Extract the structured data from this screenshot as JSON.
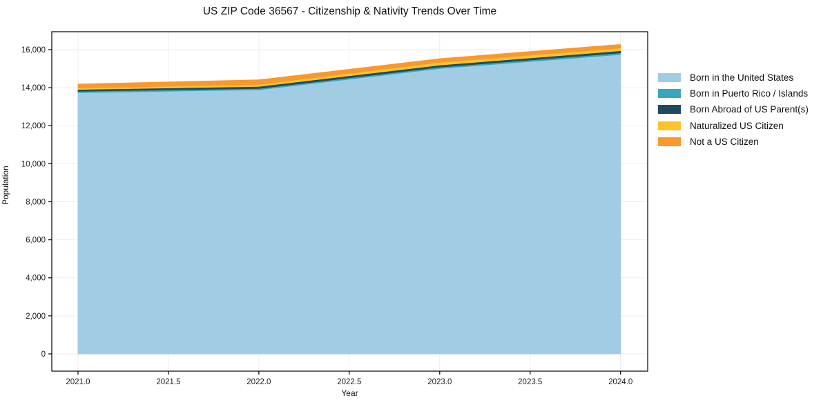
{
  "chart_data": {
    "type": "area",
    "stacked": true,
    "title": "US ZIP Code 36567 - Citizenship & Nativity Trends Over Time",
    "xlabel": "Year",
    "ylabel": "Population",
    "x": [
      2021,
      2022,
      2023,
      2024
    ],
    "series": [
      {
        "name": "Born in the United States",
        "color": "#a1cde4",
        "values": [
          13740,
          13890,
          15010,
          15745
        ]
      },
      {
        "name": "Born in Puerto Rico / Islands",
        "color": "#39a6c0",
        "values": [
          75,
          70,
          70,
          90
        ]
      },
      {
        "name": "Born Abroad of US Parent(s)",
        "color": "#21495c",
        "values": [
          95,
          110,
          110,
          110
        ]
      },
      {
        "name": "Naturalized US Citizen",
        "color": "#fcc32d",
        "values": [
          75,
          110,
          145,
          145
        ]
      },
      {
        "name": "Not a US Citizen",
        "color": "#f8982d",
        "values": [
          200,
          230,
          190,
          180
        ]
      }
    ],
    "xlim": [
      2020.855,
      2024.15
    ],
    "ylim": [
      -907,
      16943
    ],
    "xtick_values": [
      2021.0,
      2021.5,
      2022.0,
      2022.5,
      2023.0,
      2023.5,
      2024.0
    ],
    "xtick_labels": [
      "2021.0",
      "2021.5",
      "2022.0",
      "2022.5",
      "2023.0",
      "2023.5",
      "2024.0"
    ],
    "ytick_values": [
      0,
      2000,
      4000,
      6000,
      8000,
      10000,
      12000,
      14000,
      16000
    ],
    "ytick_labels": [
      "0",
      "2,000",
      "4,000",
      "6,000",
      "8,000",
      "10,000",
      "12,000",
      "14,000",
      "16,000"
    ],
    "grid": true,
    "legend_position": "right",
    "colors": {
      "spine": "#000000",
      "tick_label": "#1a1a1a",
      "grid": "#000000",
      "background": "#ffffff"
    }
  }
}
